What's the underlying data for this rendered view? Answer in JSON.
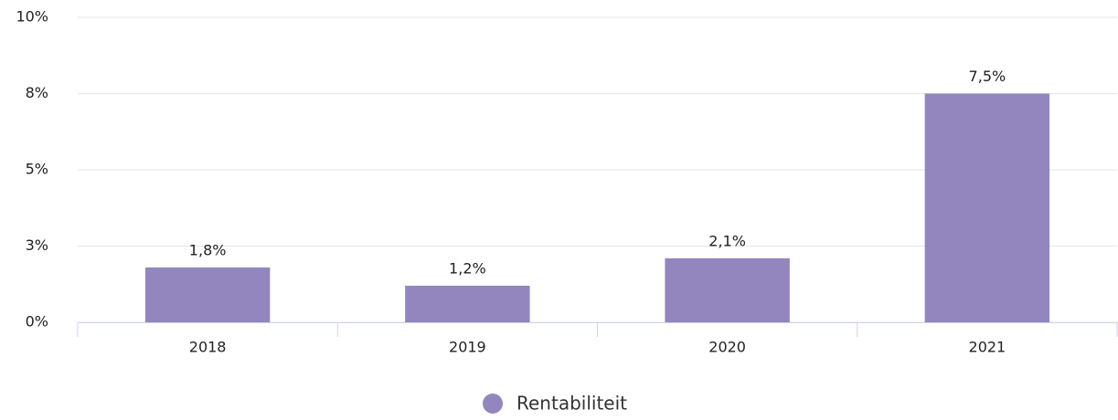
{
  "chart_data": {
    "type": "bar",
    "categories": [
      "2018",
      "2019",
      "2020",
      "2021"
    ],
    "series": [
      {
        "name": "Rentabiliteit",
        "color": "#9386bf",
        "values": [
          1.8,
          1.2,
          2.1,
          7.5
        ],
        "value_labels": [
          "1,8%",
          "1,2%",
          "2,1%",
          "7,5%"
        ]
      }
    ],
    "ylim": [
      0,
      10
    ],
    "yticks": [
      {
        "value": 0,
        "label": "0%"
      },
      {
        "value": 2.5,
        "label": "3%"
      },
      {
        "value": 5,
        "label": "5%"
      },
      {
        "value": 7.5,
        "label": "8%"
      },
      {
        "value": 10,
        "label": "10%"
      }
    ],
    "grid": true,
    "legend": "bottom"
  }
}
